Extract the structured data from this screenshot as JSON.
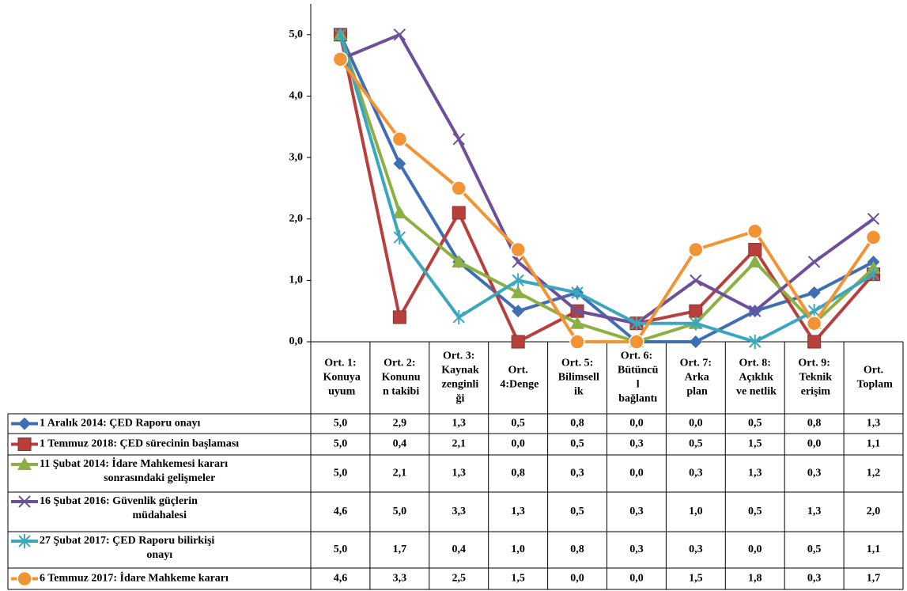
{
  "chart_data": {
    "type": "line",
    "categories": [
      "Ort. 1:\nKonuya\nuyum",
      "Ort. 2:\nKonunu\nn takibi",
      "Ort. 3:\nKaynak\nzenginli\nği",
      "Ort.\n4:Denge",
      "Ort. 5:\nBilimsell\nik",
      "Ort. 6:\nBütüncü\nl\nbağlantı",
      "Ort. 7:\nArka\nplan",
      "Ort. 8:\nAçıklık\nve netlik",
      "Ort. 9:\nTeknik\nerişim",
      "Ort.\nToplam"
    ],
    "series": [
      {
        "name": "1 Aralık 2014: ÇED Raporu onayı",
        "color": "#3e6fb5",
        "marker": "diamond",
        "values": [
          5.0,
          2.9,
          1.3,
          0.5,
          0.8,
          0.0,
          0.0,
          0.5,
          0.8,
          1.3
        ],
        "value_labels": [
          "5,0",
          "2,9",
          "1,3",
          "0,5",
          "0,8",
          "0,0",
          "0,0",
          "0,5",
          "0,8",
          "1,3"
        ]
      },
      {
        "name": "1 Temmuz 2018: ÇED sürecinin başlaması",
        "color": "#b8403c",
        "marker": "square",
        "values": [
          5.0,
          0.4,
          2.1,
          0.0,
          0.5,
          0.3,
          0.5,
          1.5,
          0.0,
          1.1
        ],
        "value_labels": [
          "5,0",
          "0,4",
          "2,1",
          "0,0",
          "0,5",
          "0,3",
          "0,5",
          "1,5",
          "0,0",
          "1,1"
        ]
      },
      {
        "name": "11 Şubat 2014: İdare Mahkemesi kararı\nsonrasındaki gelişmeler",
        "color": "#8db043",
        "marker": "triangle",
        "values": [
          5.0,
          2.1,
          1.3,
          0.8,
          0.3,
          0.0,
          0.3,
          1.3,
          0.3,
          1.2
        ],
        "value_labels": [
          "5,0",
          "2,1",
          "1,3",
          "0,8",
          "0,3",
          "0,0",
          "0,3",
          "1,3",
          "0,3",
          "1,2"
        ]
      },
      {
        "name": "16 Şubat 2016: Güvenlik güçlerin\nmüdahalesi",
        "color": "#6e509a",
        "marker": "x",
        "values": [
          4.6,
          5.0,
          3.3,
          1.3,
          0.5,
          0.3,
          1.0,
          0.5,
          1.3,
          2.0
        ],
        "value_labels": [
          "4,6",
          "5,0",
          "3,3",
          "1,3",
          "0,5",
          "0,3",
          "1,0",
          "0,5",
          "1,3",
          "2,0"
        ]
      },
      {
        "name": "27 Şubat 2017: ÇED Raporu bilirkişi\nonayı",
        "color": "#3ba7bf",
        "marker": "star",
        "values": [
          5.0,
          1.7,
          0.4,
          1.0,
          0.8,
          0.3,
          0.3,
          0.0,
          0.5,
          1.1
        ],
        "value_labels": [
          "5,0",
          "1,7",
          "0,4",
          "1,0",
          "0,8",
          "0,3",
          "0,3",
          "0,0",
          "0,5",
          "1,1"
        ]
      },
      {
        "name": "6 Temmuz 2017: İdare Mahkeme kararı",
        "color": "#f29434",
        "marker": "circle",
        "values": [
          4.6,
          3.3,
          2.5,
          1.5,
          0.0,
          0.0,
          1.5,
          1.8,
          0.3,
          1.7
        ],
        "value_labels": [
          "4,6",
          "3,3",
          "2,5",
          "1,5",
          "0,0",
          "0,0",
          "1,5",
          "1,8",
          "0,3",
          "1,7"
        ]
      }
    ],
    "ylim": [
      0,
      5.5
    ],
    "yticks": [
      {
        "value": 0,
        "label": "0,0"
      },
      {
        "value": 1,
        "label": "1,0"
      },
      {
        "value": 2,
        "label": "2,0"
      },
      {
        "value": 3,
        "label": "3,0"
      },
      {
        "value": 4,
        "label": "4,0"
      },
      {
        "value": 5,
        "label": "5,0"
      }
    ],
    "grid": false,
    "data_table": true
  }
}
